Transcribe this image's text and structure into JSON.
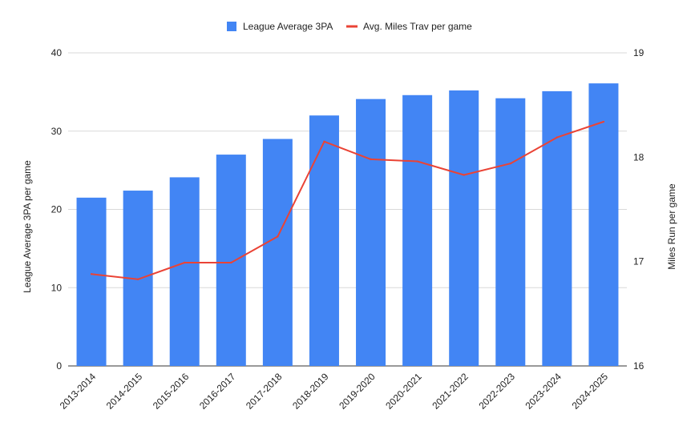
{
  "chart_data": {
    "type": "bar",
    "categories": [
      "2013-2014",
      "2014-2015",
      "2015-2016",
      "2016-2017",
      "2017-2018",
      "2018-2019",
      "2019-2020",
      "2020-2021",
      "2021-2022",
      "2022-2023",
      "2023-2024",
      "2024-2025"
    ],
    "series": [
      {
        "name": "League Average 3PA",
        "type": "bar",
        "axis": "left",
        "color": "#4285f4",
        "values": [
          21.5,
          22.4,
          24.1,
          27.0,
          29.0,
          32.0,
          34.1,
          34.6,
          35.2,
          34.2,
          35.1,
          36.1
        ]
      },
      {
        "name": "Avg. Miles Trav per game",
        "type": "line",
        "axis": "right",
        "color": "#ea4335",
        "values": [
          16.88,
          16.83,
          16.99,
          16.99,
          17.24,
          18.15,
          17.98,
          17.96,
          17.83,
          17.94,
          18.19,
          18.34
        ]
      }
    ],
    "ylabel": "League Average 3PA per game",
    "ylabel_right": "Miles Run per game",
    "ylim": [
      0,
      40
    ],
    "ylim_right": [
      16,
      19
    ],
    "yticks": [
      "0",
      "10",
      "20",
      "30",
      "40"
    ],
    "yticks_right": [
      "16",
      "17",
      "18",
      "19"
    ],
    "legend": "top-center",
    "grid": true
  }
}
